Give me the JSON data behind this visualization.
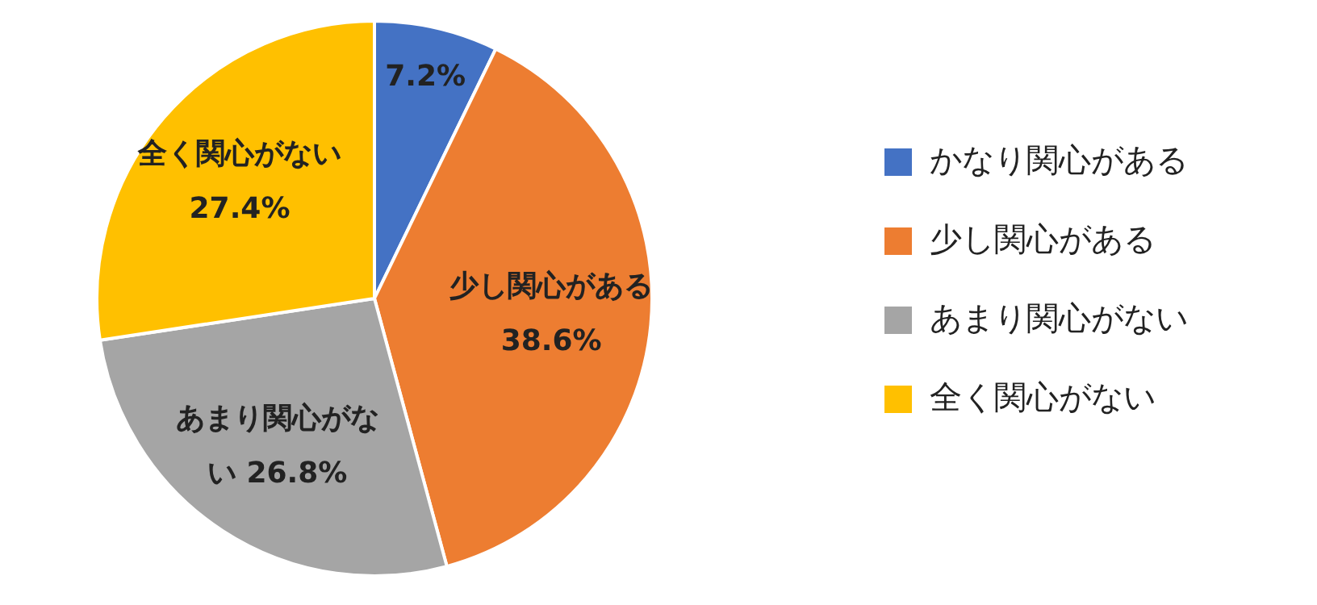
{
  "chart_data": {
    "type": "pie",
    "categories": [
      "かなり関心がある",
      "少し関心がある",
      "あまり関心がない",
      "全く関心がない"
    ],
    "values": [
      7.2,
      38.6,
      26.8,
      27.4
    ],
    "colors": [
      "#4472c4",
      "#ed7d31",
      "#a5a5a5",
      "#ffc000"
    ],
    "value_labels": [
      "7.2%",
      "少し関心がある 38.6%",
      "あまり関心がない 26.8%",
      "全く関心がない 27.4%"
    ],
    "legend": "right"
  }
}
